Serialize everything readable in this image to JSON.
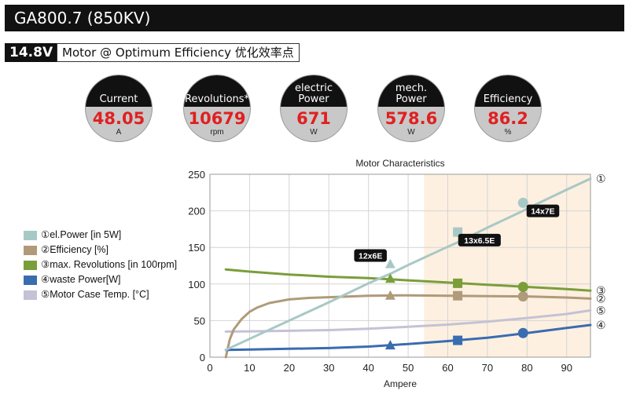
{
  "header": {
    "title": "GA800.7 (850KV)"
  },
  "subheader": {
    "voltage": "14.8V",
    "label": "Motor @ Optimum Efficiency   优化效率点"
  },
  "gauges": [
    {
      "label_lines": [
        "Current"
      ],
      "value": "48.05",
      "unit": "A"
    },
    {
      "label_lines": [
        "Revolutions*"
      ],
      "value": "10679",
      "unit": "rpm"
    },
    {
      "label_lines": [
        "electric",
        "Power"
      ],
      "value": "671",
      "unit": "W"
    },
    {
      "label_lines": [
        "mech.",
        "Power"
      ],
      "value": "578.6",
      "unit": "W"
    },
    {
      "label_lines": [
        "Efficiency"
      ],
      "value": "86.2",
      "unit": "%"
    }
  ],
  "legend": [
    {
      "label": "①el.Power [in 5W]",
      "color": "#a8c8c6"
    },
    {
      "label": "②Efficiency [%]",
      "color": "#b09a7a"
    },
    {
      "label": "③max. Revolutions [in 100rpm]",
      "color": "#7a9e3a"
    },
    {
      "label": "④waste Power[W]",
      "color": "#3a6cb0"
    },
    {
      "label": "⑤Motor Case Temp. [°C]",
      "color": "#c4c2d4"
    }
  ],
  "chart_data": {
    "type": "line",
    "title": "Motor Characteristics",
    "xlabel": "Ampere",
    "ylabel": "",
    "xlim": [
      0,
      96
    ],
    "ylim": [
      0,
      250
    ],
    "x_ticks": [
      0,
      10,
      20,
      30,
      40,
      50,
      60,
      70,
      80,
      90
    ],
    "y_ticks": [
      0,
      50,
      100,
      150,
      200,
      250
    ],
    "grid": true,
    "highlight_region": {
      "x_from": 54,
      "x_to": 96,
      "color": "#fdf0e0"
    },
    "series": [
      {
        "marker_id": "①",
        "color": "#a8c8c6",
        "marker": "circle",
        "x": [
          4,
          10,
          20,
          30,
          40,
          45.5,
          50,
          60,
          62.5,
          70,
          79,
          80,
          90,
          96
        ],
        "y": [
          10,
          25,
          50,
          75,
          101,
          114,
          126,
          151,
          157,
          177,
          200,
          203,
          229,
          244
        ],
        "markers": [
          [
            45.5,
            127,
            "triangle"
          ],
          [
            62.5,
            171,
            "square"
          ],
          [
            79,
            211,
            "circle"
          ]
        ]
      },
      {
        "marker_id": "②",
        "color": "#b09a7a",
        "marker": "circle",
        "x": [
          4,
          5,
          6,
          8,
          10,
          12,
          15,
          20,
          25,
          30,
          40,
          50,
          60,
          70,
          80,
          90,
          96
        ],
        "y": [
          0,
          24,
          38,
          52,
          62,
          68,
          74,
          79,
          81,
          82,
          84,
          84.5,
          84,
          83.5,
          83,
          81.5,
          80
        ],
        "markers": [
          [
            45.5,
            84,
            "triangle"
          ],
          [
            62.5,
            84,
            "square"
          ],
          [
            79,
            83,
            "circle"
          ]
        ]
      },
      {
        "marker_id": "③",
        "color": "#7a9e3a",
        "marker": "circle",
        "x": [
          4,
          10,
          20,
          30,
          40,
          50,
          60,
          70,
          80,
          90,
          96
        ],
        "y": [
          120,
          117,
          113,
          110,
          108,
          105,
          102,
          99,
          96,
          93,
          91
        ],
        "markers": [
          [
            45.5,
            107,
            "triangle"
          ],
          [
            62.5,
            101,
            "square"
          ],
          [
            79,
            96,
            "circle"
          ]
        ]
      },
      {
        "marker_id": "④",
        "color": "#3a6cb0",
        "marker": "circle",
        "x": [
          4,
          10,
          20,
          30,
          40,
          50,
          60,
          70,
          80,
          90,
          96
        ],
        "y": [
          10,
          10.5,
          11.5,
          12.5,
          14.5,
          18,
          22,
          26.5,
          33,
          40,
          44
        ],
        "markers": [
          [
            45.5,
            16,
            "triangle"
          ],
          [
            62.5,
            23,
            "square"
          ],
          [
            79,
            33,
            "circle"
          ]
        ]
      },
      {
        "marker_id": "⑤",
        "color": "#c4c2d4",
        "marker": "circle",
        "x": [
          4,
          10,
          20,
          30,
          40,
          50,
          60,
          70,
          80,
          90,
          96
        ],
        "y": [
          35,
          35.3,
          36,
          37,
          39,
          41.5,
          44.5,
          48.5,
          53.5,
          59,
          64
        ],
        "markers": []
      }
    ],
    "annotations": [
      {
        "text": "12x6E",
        "x": 40.5,
        "y": 139
      },
      {
        "text": "13x6.5E",
        "x": 68,
        "y": 160
      },
      {
        "text": "14x7E",
        "x": 84,
        "y": 200
      }
    ]
  }
}
